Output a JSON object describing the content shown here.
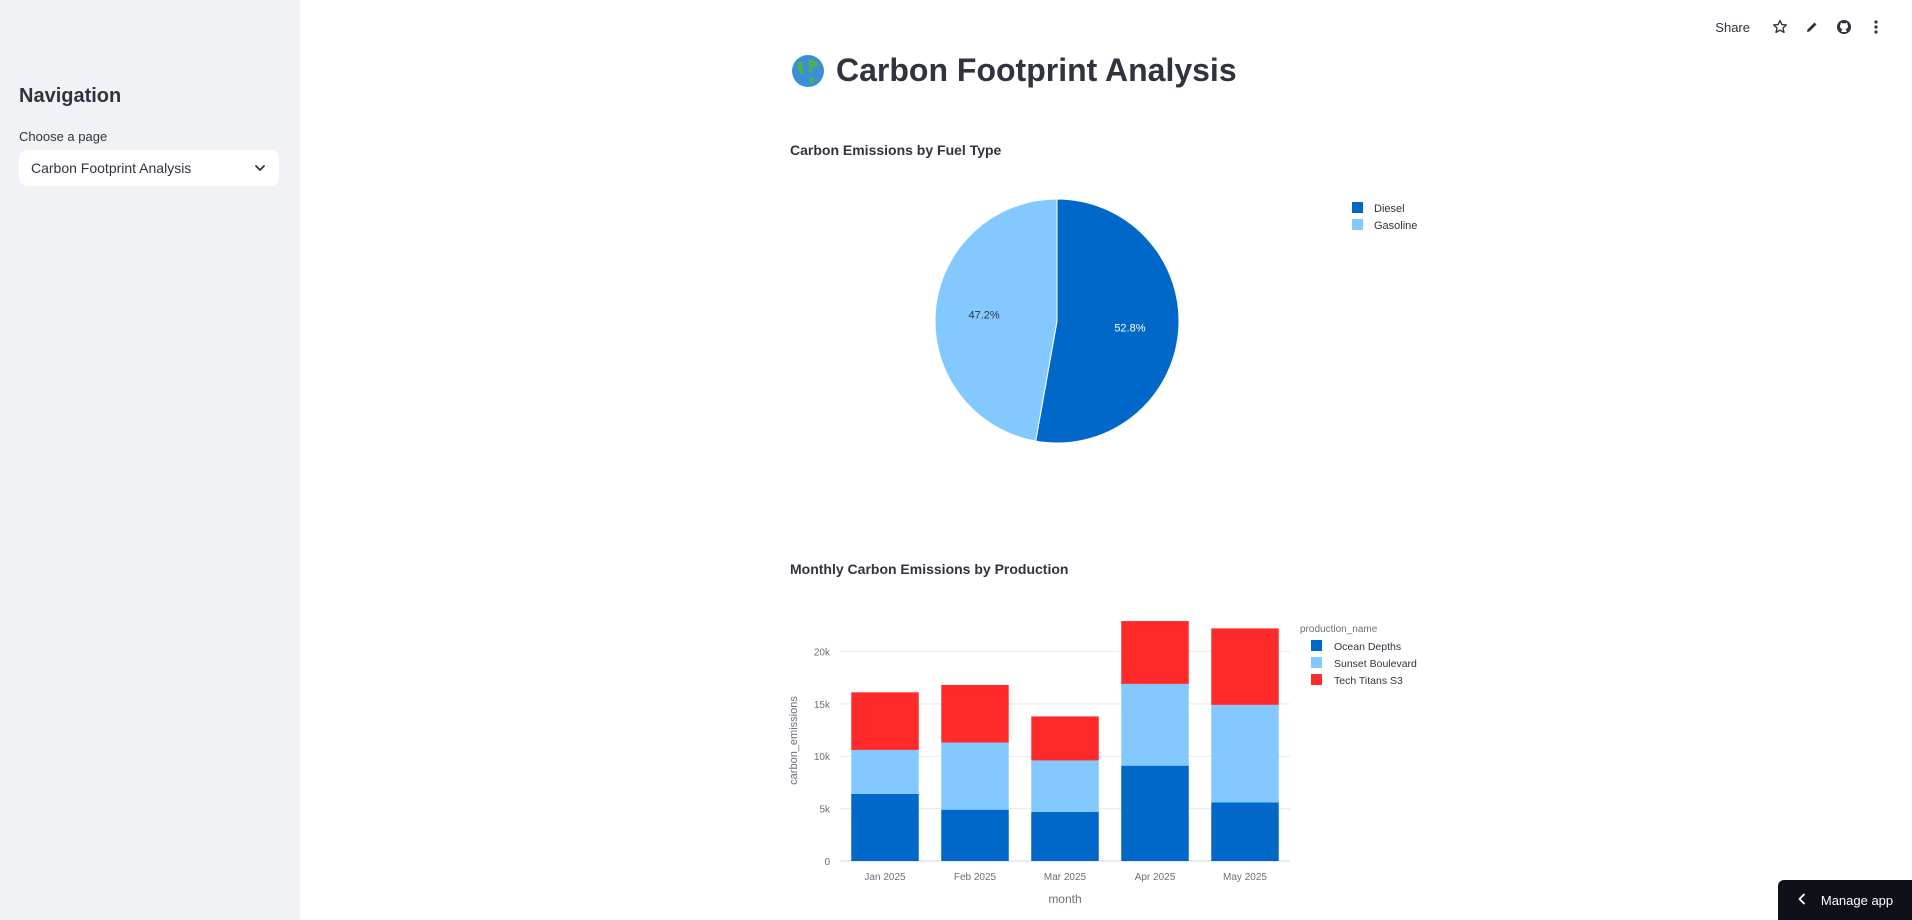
{
  "sidebar": {
    "title": "Navigation",
    "select_label": "Choose a page",
    "select_value": "Carbon Footprint Analysis"
  },
  "toolbar": {
    "share_label": "Share",
    "icons": [
      "star-icon",
      "pencil-icon",
      "github-icon",
      "more-vertical-icon"
    ]
  },
  "page": {
    "title": "Carbon Footprint Analysis",
    "emoji_icon": "globe-icon"
  },
  "manage_app": {
    "label": "Manage app"
  },
  "colors": {
    "dark_blue": "#0068c9",
    "light_blue": "#83c9ff",
    "red": "#ff2b2b"
  },
  "chart_data": [
    {
      "type": "pie",
      "title": "Carbon Emissions by Fuel Type",
      "labels": [
        "Diesel",
        "Gasoline"
      ],
      "values": [
        52.8,
        47.2
      ],
      "value_labels": [
        "52.8%",
        "47.2%"
      ],
      "colors": [
        "#0068c9",
        "#83c9ff"
      ],
      "legend": "right"
    },
    {
      "type": "bar",
      "stacked": true,
      "title": "Monthly Carbon Emissions by Production",
      "xlabel": "month",
      "ylabel": "carbon_emissions",
      "legend_title": "production_name",
      "legend": "right",
      "categories": [
        "Jan 2025",
        "Feb 2025",
        "Mar 2025",
        "Apr 2025",
        "May 2025"
      ],
      "ylim": [
        0,
        23000
      ],
      "yticks": [
        0,
        5000,
        10000,
        15000,
        20000
      ],
      "ytick_labels": [
        "0",
        "5k",
        "10k",
        "15k",
        "20k"
      ],
      "grid": true,
      "series": [
        {
          "name": "Ocean Depths",
          "color": "#0068c9",
          "values": [
            6400,
            4900,
            4700,
            9100,
            5600
          ]
        },
        {
          "name": "Sunset Boulevard",
          "color": "#83c9ff",
          "values": [
            4200,
            6400,
            4900,
            7800,
            9300
          ]
        },
        {
          "name": "Tech Titans S3",
          "color": "#ff2b2b",
          "values": [
            5500,
            5500,
            4200,
            6000,
            7300
          ]
        }
      ]
    }
  ]
}
